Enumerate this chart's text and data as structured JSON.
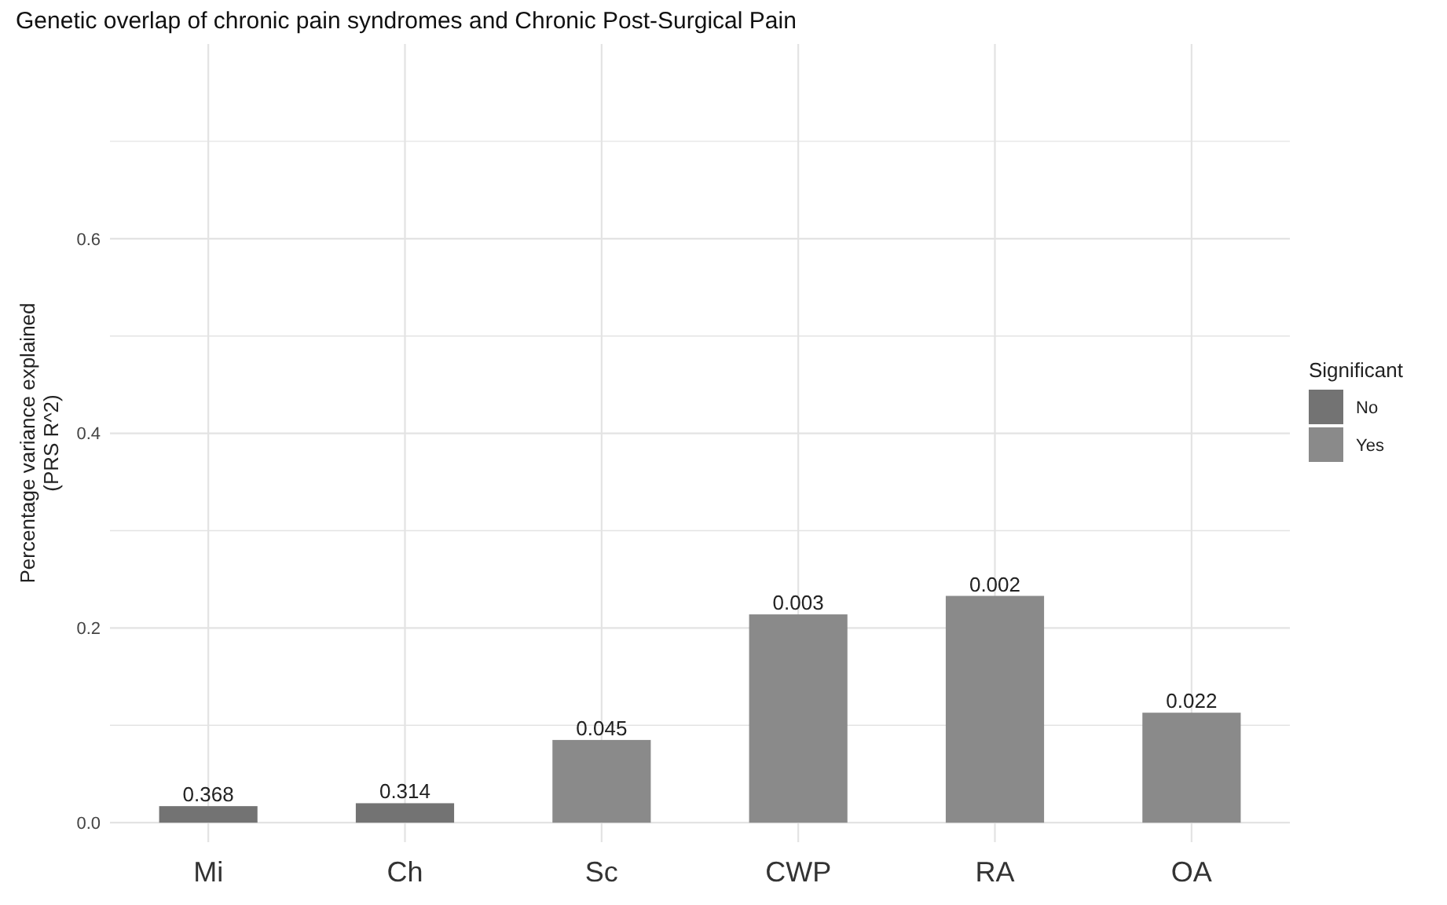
{
  "chart_data": {
    "type": "bar",
    "title": "Genetic overlap of chronic pain syndromes and Chronic Post-Surgical Pain",
    "ylabel": "Percentage variance explained\n(PRS R^2)",
    "legend_title": "Significant",
    "categories": [
      "Mi",
      "Ch",
      "Sc",
      "CWP",
      "RA",
      "OA"
    ],
    "series": [
      {
        "name": "No",
        "color": "#737373",
        "values": [
          0.017,
          0.02,
          null,
          null,
          null,
          null
        ]
      },
      {
        "name": "Yes",
        "color": "#8a8a8a",
        "values": [
          null,
          null,
          0.085,
          0.214,
          0.233,
          0.113
        ]
      }
    ],
    "annotations": [
      {
        "text": "0.368",
        "x": "Mi",
        "y": 0.017
      },
      {
        "text": "0.314",
        "x": "Ch",
        "y": 0.02
      },
      {
        "text": "0.045",
        "x": "Sc",
        "y": 0.085
      },
      {
        "text": "0.003",
        "x": "CWP",
        "y": 0.214
      },
      {
        "text": "0.002",
        "x": "RA",
        "y": 0.233
      },
      {
        "text": "0.022",
        "x": "OA",
        "y": 0.113
      }
    ],
    "ylim": [
      -0.02,
      0.8
    ],
    "yticks": [
      {
        "value": 0,
        "label": "0.0"
      },
      {
        "value": 0.1,
        "label": null
      },
      0.2,
      {
        "value": 0.3,
        "label": null
      },
      0.4,
      {
        "value": 0.5,
        "label": null
      },
      0.6,
      {
        "value": 0.7,
        "label": null
      }
    ],
    "grid": true,
    "legend": "right"
  }
}
